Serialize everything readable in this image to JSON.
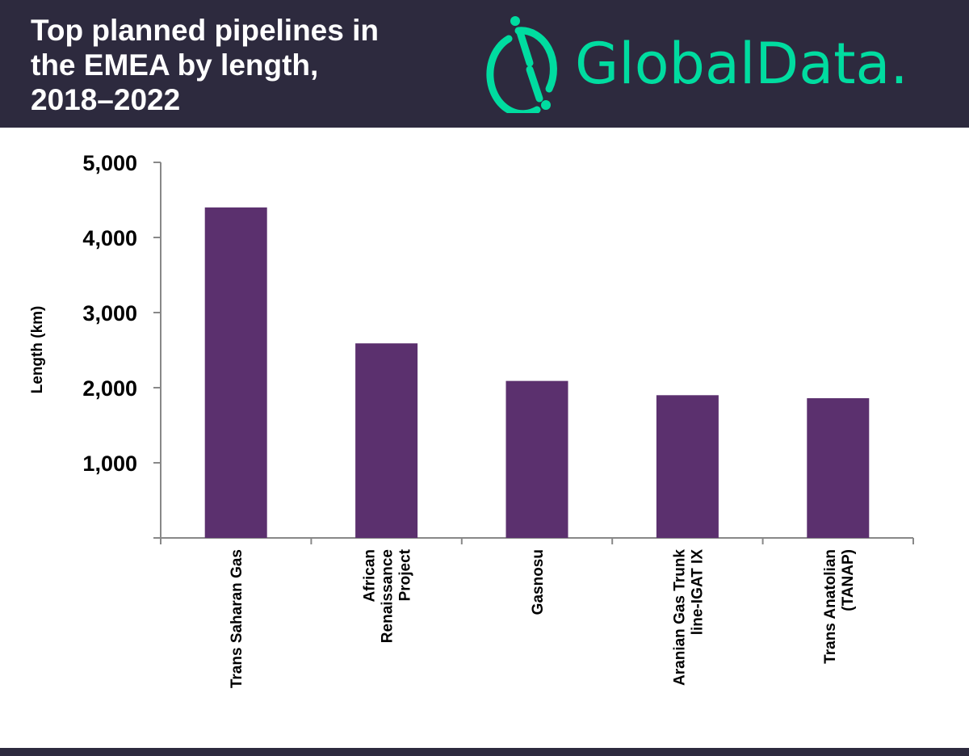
{
  "header": {
    "title_lines": [
      "Top planned pipelines in",
      "the EMEA by length,",
      "2018–2022"
    ]
  },
  "logo": {
    "text": "GlobalData",
    "color": "#00dca0"
  },
  "chart_data": {
    "type": "bar",
    "title": "Top planned pipelines in the EMEA by length, 2018–2022",
    "xlabel": "",
    "ylabel": "Length (km)",
    "ylim": [
      0,
      5000
    ],
    "yticks": [
      1000,
      2000,
      3000,
      4000,
      5000
    ],
    "ytick_labels": [
      "1,000",
      "2,000",
      "3,000",
      "4,000",
      "5,000"
    ],
    "grid": false,
    "bar_color": "#5b306e",
    "categories": [
      "Trans Saharan Gas",
      "African Renaissance Project",
      "Gasnosu",
      "Aranian Gas Trunk line-IGAT IX",
      "Trans Anatolian (TANAP)"
    ],
    "category_label_lines": [
      [
        "Trans Saharan Gas"
      ],
      [
        "African",
        "Renaissance",
        "Project"
      ],
      [
        "Gasnosu"
      ],
      [
        "Aranian Gas Trunk",
        "line-IGAT IX"
      ],
      [
        "Trans Anatolian",
        "(TANAP)"
      ]
    ],
    "values": [
      4400,
      2590,
      2090,
      1900,
      1860
    ]
  }
}
